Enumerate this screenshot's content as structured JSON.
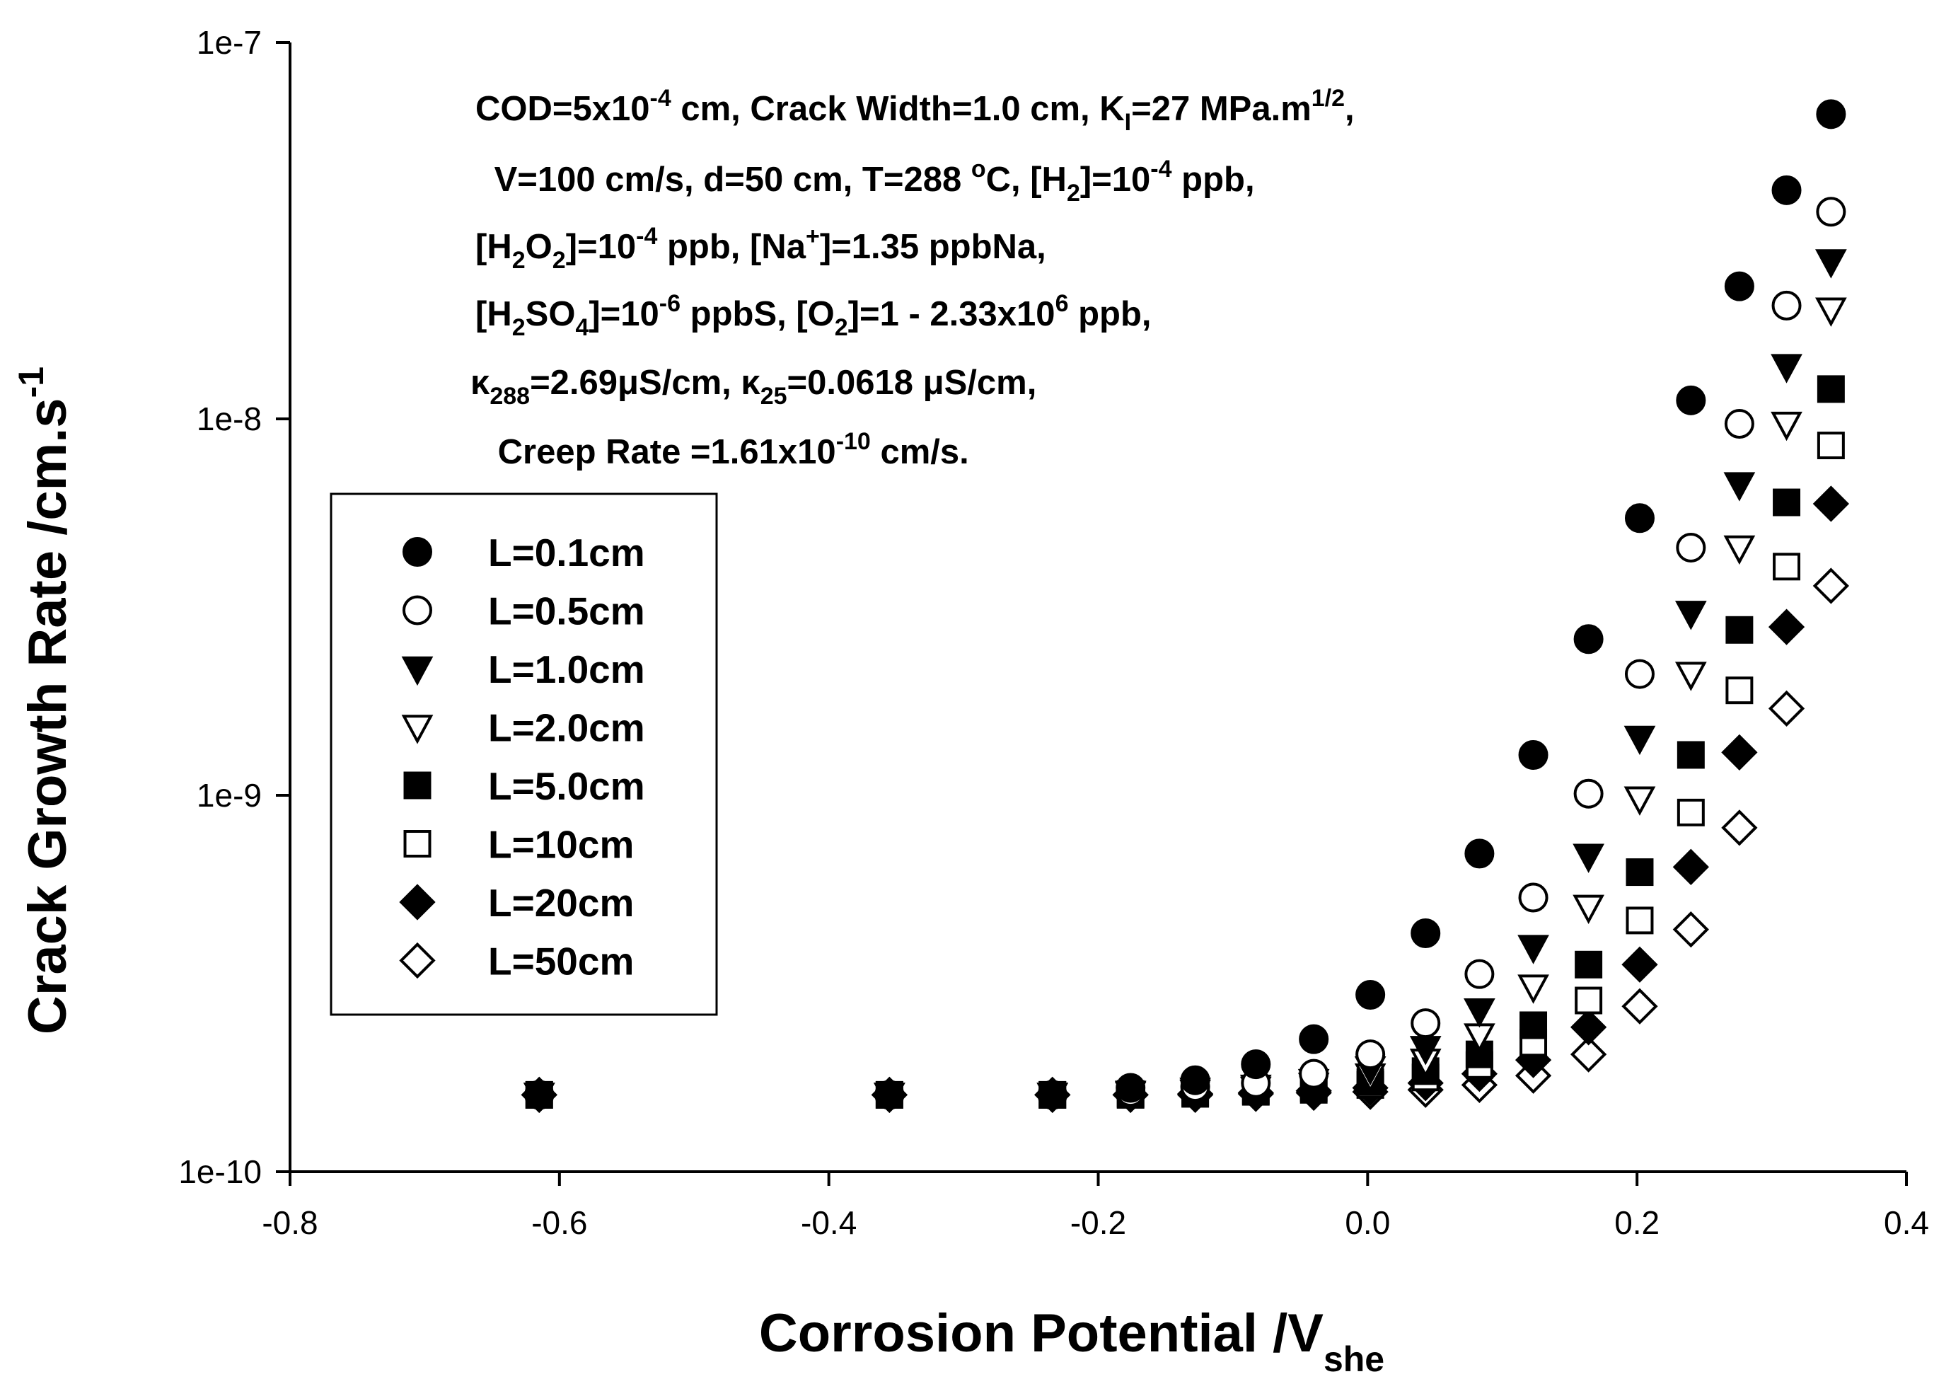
{
  "chart_data": {
    "type": "scatter",
    "title": "",
    "xlabel": {
      "main": "Corrosion Potential /V",
      "sub": "she"
    },
    "ylabel": {
      "main": "Crack Growth Rate /cm.s",
      "sup": "-1"
    },
    "xlim": [
      -0.8,
      0.4
    ],
    "ylim": [
      1e-10,
      1e-07
    ],
    "yscale": "log",
    "xticks": [
      -0.8,
      -0.6,
      -0.4,
      -0.2,
      0.0,
      0.2,
      0.4
    ],
    "xtick_labels": [
      "-0.8",
      "-0.6",
      "-0.4",
      "-0.2",
      "0.0",
      "0.2",
      "0.4"
    ],
    "yticks": [
      1e-10,
      1e-09,
      1e-08,
      1e-07
    ],
    "ytick_labels": [
      "1e-10",
      "1e-9",
      "1e-8",
      "1e-7"
    ],
    "grid": false,
    "legend_position": "left-middle",
    "annotation_lines": [
      [
        {
          "t": "COD=5x10"
        },
        {
          "t": "-4",
          "s": "sup"
        },
        {
          "t": " cm, Crack Width=1.0 cm, K"
        },
        {
          "t": "I",
          "s": "sub"
        },
        {
          "t": "=27 MPa.m"
        },
        {
          "t": "1/2",
          "s": "sup"
        },
        {
          "t": ","
        }
      ],
      [
        {
          "t": " V=100 cm/s, d=50 cm, T=288 "
        },
        {
          "t": "o",
          "s": "sup"
        },
        {
          "t": "C, [H"
        },
        {
          "t": "2",
          "s": "sub"
        },
        {
          "t": "]=10"
        },
        {
          "t": "-4",
          "s": "sup"
        },
        {
          "t": " ppb,"
        }
      ],
      [
        {
          "t": "[H"
        },
        {
          "t": "2",
          "s": "sub"
        },
        {
          "t": "O"
        },
        {
          "t": "2",
          "s": "sub"
        },
        {
          "t": "]=10"
        },
        {
          "t": "-4",
          "s": "sup"
        },
        {
          "t": " ppb, [Na"
        },
        {
          "t": "+",
          "s": "sup"
        },
        {
          "t": "]=1.35 ppbNa,"
        }
      ],
      [
        {
          "t": "[H"
        },
        {
          "t": "2",
          "s": "sub"
        },
        {
          "t": "SO"
        },
        {
          "t": "4",
          "s": "sub"
        },
        {
          "t": "]=10"
        },
        {
          "t": "-6",
          "s": "sup"
        },
        {
          "t": " ppbS, [O"
        },
        {
          "t": "2",
          "s": "sub"
        },
        {
          "t": "]=1 - 2.33x10"
        },
        {
          "t": "6",
          "s": "sup"
        },
        {
          "t": " ppb,"
        }
      ],
      [
        {
          "t": "κ"
        },
        {
          "t": "288",
          "s": "sub"
        },
        {
          "t": "=2.69μS/cm, κ"
        },
        {
          "t": "25",
          "s": "sub"
        },
        {
          "t": "=0.0618 μS/cm,"
        }
      ],
      [
        {
          "t": " Creep Rate =1.61x10"
        },
        {
          "t": "-10",
          "s": "sup"
        },
        {
          "t": " cm/s."
        }
      ]
    ],
    "x": [
      -0.615,
      -0.355,
      -0.234,
      -0.176,
      -0.128,
      -0.083,
      -0.04,
      0.002,
      0.043,
      0.083,
      0.123,
      0.164,
      0.202,
      0.24,
      0.276,
      0.311,
      0.344
    ],
    "series": [
      {
        "name": "L=0.1cm",
        "marker": "circle-filled",
        "values": [
          1.6e-10,
          1.6e-10,
          1.6e-10,
          1.67e-10,
          1.75e-10,
          1.93e-10,
          2.25e-10,
          2.95e-10,
          4.3e-10,
          7e-10,
          1.28e-09,
          2.6e-09,
          5.45e-09,
          1.12e-08,
          2.25e-08,
          4.05e-08,
          6.45e-08
        ]
      },
      {
        "name": "L=0.5cm",
        "marker": "circle-open",
        "values": [
          1.6e-10,
          1.6e-10,
          1.6e-10,
          1.63e-10,
          1.68e-10,
          1.72e-10,
          1.82e-10,
          2.05e-10,
          2.48e-10,
          3.35e-10,
          5.35e-10,
          1.01e-09,
          2.1e-09,
          4.55e-09,
          9.7e-09,
          2e-08,
          3.55e-08
        ]
      },
      {
        "name": "L=1.0cm",
        "marker": "triangle-down-filled",
        "values": [
          1.6e-10,
          1.6e-10,
          1.6e-10,
          1.62e-10,
          1.65e-10,
          1.68e-10,
          1.74e-10,
          1.88e-10,
          2.13e-10,
          2.68e-10,
          3.95e-10,
          6.9e-10,
          1.42e-09,
          3.05e-09,
          6.7e-09,
          1.38e-08,
          2.62e-08
        ]
      },
      {
        "name": "L=2.0cm",
        "marker": "triangle-down-open",
        "values": [
          1.6e-10,
          1.6e-10,
          1.6e-10,
          1.61e-10,
          1.63e-10,
          1.66e-10,
          1.7e-10,
          1.8e-10,
          1.97e-10,
          2.3e-10,
          3.1e-10,
          5.05e-10,
          9.8e-10,
          2.1e-09,
          4.55e-09,
          9.7e-09,
          1.95e-08
        ]
      },
      {
        "name": "L=5.0cm",
        "marker": "square-filled",
        "values": [
          1.6e-10,
          1.6e-10,
          1.6e-10,
          1.61e-10,
          1.62e-10,
          1.64e-10,
          1.67e-10,
          1.73e-10,
          1.85e-10,
          2.05e-10,
          2.45e-10,
          3.55e-10,
          6.25e-10,
          1.28e-09,
          2.75e-09,
          6e-09,
          1.2e-08
        ]
      },
      {
        "name": "L=10cm",
        "marker": "square-open",
        "values": [
          1.6e-10,
          1.6e-10,
          1.6e-10,
          1.6e-10,
          1.61e-10,
          1.63e-10,
          1.65e-10,
          1.7e-10,
          1.78e-10,
          1.92e-10,
          2.2e-10,
          2.85e-10,
          4.65e-10,
          9e-10,
          1.9e-09,
          4.05e-09,
          8.5e-09
        ]
      },
      {
        "name": "L=20cm",
        "marker": "diamond-filled",
        "values": [
          1.6e-10,
          1.6e-10,
          1.6e-10,
          1.6e-10,
          1.61e-10,
          1.62e-10,
          1.64e-10,
          1.67e-10,
          1.72e-10,
          1.82e-10,
          1.98e-10,
          2.42e-10,
          3.55e-10,
          6.45e-10,
          1.3e-09,
          2.8e-09,
          5.95e-09
        ]
      },
      {
        "name": "L=50cm",
        "marker": "diamond-open",
        "values": [
          1.6e-10,
          1.6e-10,
          1.6e-10,
          1.6e-10,
          1.6e-10,
          1.61e-10,
          1.62e-10,
          1.63e-10,
          1.65e-10,
          1.7e-10,
          1.8e-10,
          2.05e-10,
          2.75e-10,
          4.4e-10,
          8.2e-10,
          1.7e-09,
          3.6e-09
        ]
      }
    ]
  }
}
